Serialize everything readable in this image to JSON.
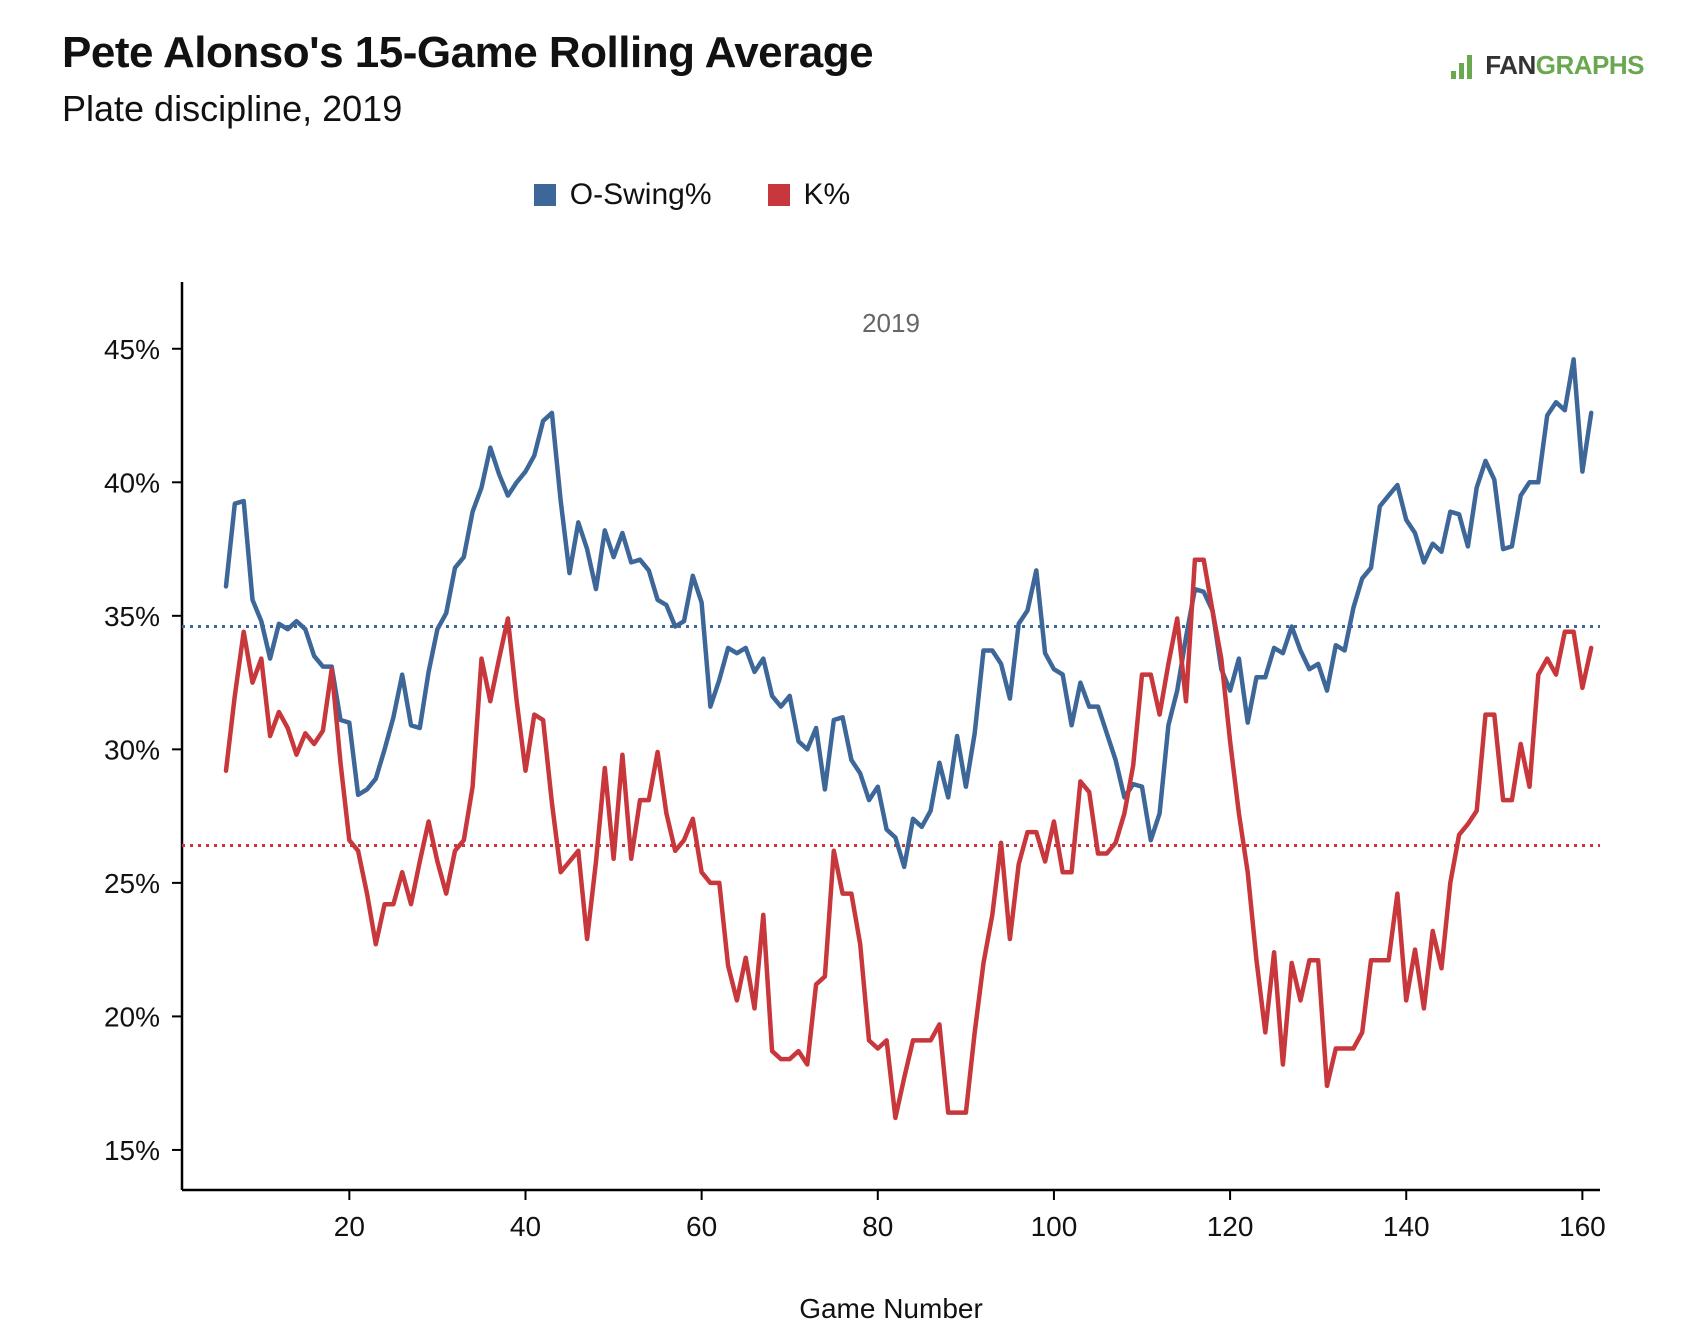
{
  "header": {
    "title": "Pete Alonso's 15-Game Rolling Average",
    "subtitle": "Plate discipline, 2019",
    "logo_fan": "FAN",
    "logo_graphs": "GRAPHS"
  },
  "colors": {
    "oswing": "#3e6799",
    "k": "#c8373b",
    "logo": "#6aa84f"
  },
  "chart_data": {
    "type": "line",
    "panel_label": "2019",
    "xlabel": "Game Number",
    "ylabel": "",
    "xlim": [
      1,
      162
    ],
    "ylim": [
      13.5,
      47.5
    ],
    "xticks": [
      20,
      40,
      60,
      80,
      100,
      120,
      140,
      160
    ],
    "yticks": [
      15,
      20,
      25,
      30,
      35,
      40,
      45
    ],
    "ytick_labels": [
      "15%",
      "20%",
      "25%",
      "30%",
      "35%",
      "40%",
      "45%"
    ],
    "legend_position": "top-center",
    "reference_lines": [
      {
        "series": "O-Swing%",
        "value": 34.6
      },
      {
        "series": "K%",
        "value": 26.4
      }
    ],
    "x_start": 6,
    "series": [
      {
        "name": "O-Swing%",
        "color": "#3e6799",
        "values": [
          36.1,
          39.2,
          39.3,
          35.6,
          34.8,
          33.4,
          34.7,
          34.5,
          34.8,
          34.5,
          33.5,
          33.1,
          33.1,
          31.1,
          31.0,
          28.3,
          28.5,
          28.9,
          30.0,
          31.2,
          32.8,
          30.9,
          30.8,
          32.9,
          34.5,
          35.1,
          36.8,
          37.2,
          38.9,
          39.8,
          41.3,
          40.3,
          39.5,
          40.0,
          40.4,
          41.0,
          42.3,
          42.6,
          39.3,
          36.6,
          38.5,
          37.5,
          36.0,
          38.2,
          37.2,
          38.1,
          37.0,
          37.1,
          36.7,
          35.6,
          35.4,
          34.6,
          34.8,
          36.5,
          35.5,
          31.6,
          32.6,
          33.8,
          33.6,
          33.8,
          32.9,
          33.4,
          32.0,
          31.6,
          32.0,
          30.3,
          30.0,
          30.8,
          28.5,
          31.1,
          31.2,
          29.6,
          29.1,
          28.1,
          28.6,
          27.0,
          26.7,
          25.6,
          27.4,
          27.1,
          27.7,
          29.5,
          28.2,
          30.5,
          28.6,
          30.6,
          33.7,
          33.7,
          33.2,
          31.9,
          34.7,
          35.2,
          36.7,
          33.6,
          33.0,
          32.8,
          30.9,
          32.5,
          31.6,
          31.6,
          30.6,
          29.6,
          28.2,
          28.7,
          28.6,
          26.6,
          27.6,
          30.9,
          32.2,
          34.2,
          36.0,
          35.9,
          35.2,
          33.0,
          32.2,
          33.4,
          31.0,
          32.7,
          32.7,
          33.8,
          33.6,
          34.6,
          33.7,
          33.0,
          33.2,
          32.2,
          33.9,
          33.7,
          35.3,
          36.4,
          36.8,
          39.1,
          39.5,
          39.9,
          38.6,
          38.1,
          37.0,
          37.7,
          37.4,
          38.9,
          38.8,
          37.6,
          39.8,
          40.8,
          40.1,
          37.5,
          37.6,
          39.5,
          40.0,
          40.0,
          42.5,
          43.0,
          42.7,
          44.6,
          40.4,
          42.6
        ]
      },
      {
        "name": "K%",
        "color": "#c8373b",
        "values": [
          29.2,
          32.0,
          34.4,
          32.5,
          33.4,
          30.5,
          31.4,
          30.8,
          29.8,
          30.6,
          30.2,
          30.7,
          33.0,
          29.5,
          26.6,
          26.2,
          24.6,
          22.7,
          24.2,
          24.2,
          25.4,
          24.2,
          25.8,
          27.3,
          25.8,
          24.6,
          26.2,
          26.6,
          28.6,
          33.4,
          31.8,
          33.4,
          34.9,
          31.8,
          29.2,
          31.3,
          31.1,
          28.0,
          25.4,
          25.8,
          26.2,
          22.9,
          25.8,
          29.3,
          25.9,
          29.8,
          25.9,
          28.1,
          28.1,
          29.9,
          27.6,
          26.2,
          26.6,
          27.4,
          25.4,
          25.0,
          25.0,
          21.9,
          20.6,
          22.2,
          20.3,
          23.8,
          18.7,
          18.4,
          18.4,
          18.7,
          18.2,
          21.2,
          21.5,
          26.2,
          24.6,
          24.6,
          22.7,
          19.1,
          18.8,
          19.1,
          16.2,
          17.7,
          19.1,
          19.1,
          19.1,
          19.7,
          16.4,
          16.4,
          16.4,
          19.4,
          22.0,
          23.8,
          26.5,
          22.9,
          25.7,
          26.9,
          26.9,
          25.8,
          27.3,
          25.4,
          25.4,
          28.8,
          28.4,
          26.1,
          26.1,
          26.5,
          27.6,
          29.4,
          32.8,
          32.8,
          31.3,
          33.2,
          34.9,
          31.8,
          37.1,
          37.1,
          35.2,
          33.4,
          30.3,
          27.6,
          25.4,
          22.1,
          19.4,
          22.4,
          18.2,
          22.0,
          20.6,
          22.1,
          22.1,
          17.4,
          18.8,
          18.8,
          18.8,
          19.4,
          22.1,
          22.1,
          22.1,
          24.6,
          20.6,
          22.5,
          20.3,
          23.2,
          21.8,
          25.0,
          26.8,
          27.2,
          27.7,
          31.3,
          31.3,
          28.1,
          28.1,
          30.2,
          28.6,
          32.8,
          33.4,
          32.8,
          34.4,
          34.4,
          32.3,
          33.8
        ]
      }
    ]
  }
}
